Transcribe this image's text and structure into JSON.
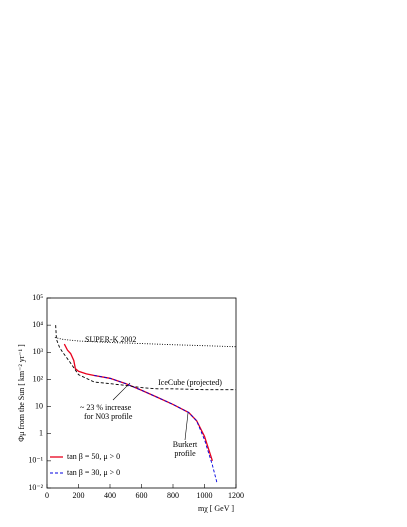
{
  "chart_data": {
    "type": "line",
    "x_label": "mχ [ GeV ]",
    "y_label": "Φμ from the Sun [ km⁻² yr⁻¹ ]",
    "xlim": [
      0,
      1200
    ],
    "xticks": [
      0,
      200,
      400,
      600,
      800,
      1000,
      1200
    ],
    "ylim": [
      0.01,
      100000
    ],
    "log_y": true,
    "yticks": [
      {
        "value": 0.01,
        "label": "10⁻²"
      },
      {
        "value": 0.1,
        "label": "10⁻¹"
      },
      1,
      10,
      {
        "value": 100,
        "label": "10²"
      },
      {
        "value": 1000,
        "label": "10³"
      },
      {
        "value": 10000,
        "label": "10⁴"
      },
      {
        "value": 100000,
        "label": "10⁵"
      }
    ],
    "legend": "lower left",
    "series": [
      {
        "name": "tan β = 50, μ > 0",
        "color": "#e8001c",
        "style": "solid",
        "x": [
          110,
          130,
          150,
          170,
          180,
          200,
          250,
          300,
          400,
          500,
          600,
          700,
          800,
          900,
          950,
          1000,
          1050
        ],
        "values": [
          2000,
          1200,
          900,
          500,
          250,
          200,
          160,
          140,
          110,
          70,
          40,
          22,
          12,
          6,
          3,
          0.8,
          0.1
        ]
      },
      {
        "name": "tan β = 30, μ > 0",
        "color": "#0000e0",
        "style": "dashed",
        "x": [
          300,
          400,
          500,
          600,
          700,
          800,
          900,
          950,
          1000,
          1050,
          1080
        ],
        "values": [
          140,
          110,
          70,
          40,
          22,
          12,
          6,
          3,
          0.6,
          0.07,
          0.015
        ]
      },
      {
        "name": "SUPER-K 2002",
        "color": "#000000",
        "style": "dotted",
        "x": [
          50,
          100,
          200,
          400,
          600,
          800,
          1000,
          1200
        ],
        "values": [
          3500,
          3000,
          2600,
          2300,
          2100,
          1900,
          1750,
          1600
        ]
      },
      {
        "name": "IceCube (projected)",
        "color": "#000000",
        "style": "dashed",
        "x": [
          55,
          60,
          80,
          100,
          150,
          200,
          300,
          400,
          500,
          600,
          700,
          800,
          1000,
          1200
        ],
        "values": [
          10000,
          3000,
          1500,
          1000,
          400,
          150,
          80,
          70,
          60,
          50,
          45,
          45,
          42,
          42
        ]
      }
    ],
    "annotations": [
      "~ 23 % increase",
      "for N03 profile",
      "Burkert",
      "profile"
    ]
  }
}
